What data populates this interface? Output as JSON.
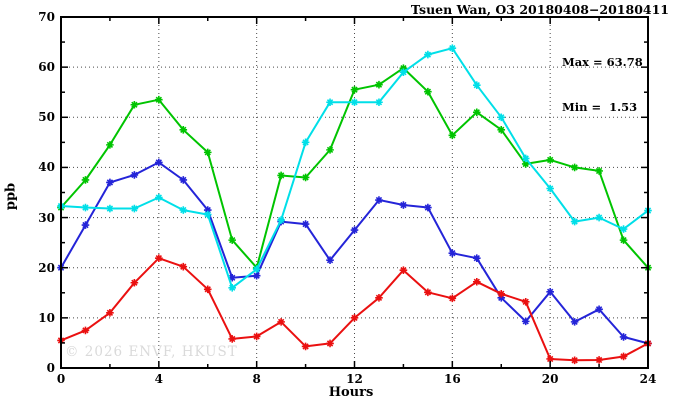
{
  "title": "Tsuen Wan, O3 20180408−20180411",
  "annotation": {
    "max_label": "Max = 63.78",
    "min_label": "Min =  1.53"
  },
  "watermark": "© 2026 ENVF, HKUST",
  "chart_data": {
    "type": "line",
    "title": "Tsuen Wan, O3 20180408−20180411",
    "xlabel": "Hours",
    "ylabel": "ppb",
    "xlim": [
      0,
      24
    ],
    "ylim": [
      0,
      70
    ],
    "grid": true,
    "legend_position": "none",
    "max_value": 63.78,
    "min_value": 1.53,
    "x_major_ticks": [
      0,
      4,
      8,
      12,
      16,
      20,
      24
    ],
    "x_minor_ticks": [
      2,
      6,
      10,
      14,
      18,
      22
    ],
    "y_major_ticks": [
      0,
      10,
      20,
      30,
      40,
      50,
      60,
      70
    ],
    "y_minor_ticks": [
      5,
      15,
      25,
      35,
      45,
      55,
      65
    ],
    "grid_x": [
      4,
      8,
      12,
      16,
      20
    ],
    "grid_y": [
      10,
      20,
      30,
      40,
      50,
      60
    ],
    "x": [
      0,
      1,
      2,
      3,
      4,
      5,
      6,
      7,
      8,
      9,
      10,
      11,
      12,
      13,
      14,
      15,
      16,
      17,
      18,
      19,
      20,
      21,
      22,
      23,
      24
    ],
    "series": [
      {
        "name": "green",
        "color": "#00c400",
        "values": [
          32.0,
          37.5,
          44.5,
          52.5,
          53.5,
          47.5,
          43.0,
          25.5,
          20.0,
          38.4,
          38.0,
          43.5,
          55.5,
          56.5,
          59.8,
          55.1,
          46.4,
          51.0,
          47.5,
          40.7,
          41.5,
          40.0,
          39.3,
          25.5,
          20.0
        ]
      },
      {
        "name": "blue",
        "color": "#2424d8",
        "values": [
          20.0,
          28.5,
          37.0,
          38.5,
          41.0,
          37.5,
          31.5,
          18.0,
          18.4,
          29.2,
          28.7,
          21.5,
          27.5,
          33.5,
          32.5,
          32.0,
          22.9,
          21.9,
          14.0,
          9.3,
          15.2,
          9.2,
          11.7,
          6.2,
          4.9
        ]
      },
      {
        "name": "cyan",
        "color": "#00dfe8",
        "values": [
          32.3,
          32.0,
          31.8,
          31.8,
          34.0,
          31.5,
          30.6,
          16.0,
          19.7,
          29.5,
          45.0,
          53.0,
          53.0,
          53.0,
          59.0,
          62.5,
          63.78,
          56.4,
          50.0,
          41.8,
          35.8,
          29.2,
          30.0,
          27.7,
          31.4
        ]
      },
      {
        "name": "red",
        "color": "#ea1010",
        "values": [
          5.5,
          7.5,
          11.0,
          17.0,
          21.9,
          20.2,
          15.7,
          5.8,
          6.3,
          9.2,
          4.3,
          4.9,
          10.0,
          14.0,
          19.5,
          15.1,
          13.9,
          17.2,
          14.8,
          13.2,
          1.8,
          1.53,
          1.6,
          2.3,
          4.9
        ]
      }
    ]
  }
}
